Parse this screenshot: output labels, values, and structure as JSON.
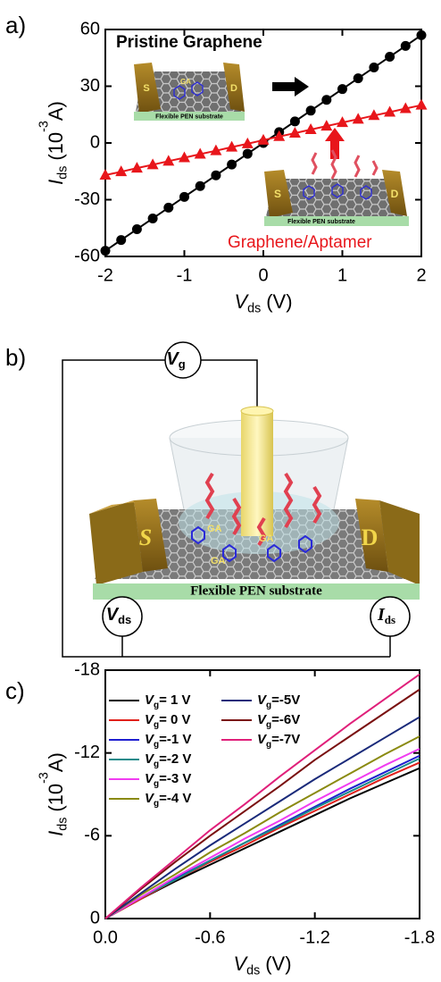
{
  "chart_data": [
    {
      "type": "line",
      "panel": "a)",
      "x": [
        -2,
        -1.8,
        -1.6,
        -1.4,
        -1.2,
        -1,
        -0.8,
        -0.6,
        -0.4,
        -0.2,
        0,
        0.2,
        0.4,
        0.6,
        0.8,
        1,
        1.2,
        1.4,
        1.6,
        1.8,
        2
      ],
      "series": [
        {
          "name": "Pristine Graphene",
          "color": "#000000",
          "marker": "circle",
          "values": [
            -57,
            -51.3,
            -45.6,
            -39.9,
            -34.2,
            -28.5,
            -22.8,
            -17.1,
            -11.4,
            -5.7,
            0,
            5.7,
            11.4,
            17.1,
            22.8,
            28.5,
            34.2,
            39.9,
            45.6,
            51.3,
            57
          ]
        },
        {
          "name": "Graphene/Aptamer",
          "color": "#e8161b",
          "marker": "triangle",
          "values": [
            -17,
            -15.2,
            -13.3,
            -11.5,
            -9.6,
            -7.8,
            -5.9,
            -4.1,
            -2.2,
            -0.4,
            1.5,
            3.4,
            5.2,
            7.1,
            8.9,
            10.8,
            12.6,
            14.5,
            16.3,
            18.2,
            20
          ]
        }
      ],
      "xlabel": [
        "V",
        "ds",
        "(V)"
      ],
      "ylabel": [
        "I",
        "ds",
        "(10",
        "-3",
        "A)"
      ],
      "xlim": [
        -2,
        2
      ],
      "xticks": [
        -2,
        -1,
        0,
        1,
        2
      ],
      "ylim": [
        -60,
        60
      ],
      "yticks": [
        -60,
        -30,
        0,
        30,
        60
      ],
      "inset_labels": {
        "source": "S",
        "drain": "D",
        "substrate": "Flexible PEN substrate",
        "molecule": "GA"
      }
    },
    {
      "type": "line",
      "panel": "c)",
      "x": [
        0,
        -0.2,
        -0.4,
        -0.6,
        -0.8,
        -1.0,
        -1.2,
        -1.4,
        -1.6,
        -1.8
      ],
      "series": [
        {
          "name": "Vg= 1 V",
          "color": "#000000",
          "values": [
            0,
            -1.4,
            -2.7,
            -3.9,
            -5.1,
            -6.3,
            -7.5,
            -8.7,
            -9.8,
            -10.9
          ]
        },
        {
          "name": "Vg= 0 V",
          "color": "#e0201b",
          "values": [
            0,
            -1.4,
            -2.8,
            -4.1,
            -5.3,
            -6.6,
            -7.8,
            -9.0,
            -10.2,
            -11.3
          ]
        },
        {
          "name": "Vg=-1 V",
          "color": "#1f1fd0",
          "values": [
            0,
            -1.5,
            -2.9,
            -4.2,
            -5.5,
            -6.8,
            -8.1,
            -9.4,
            -10.6,
            -11.8
          ]
        },
        {
          "name": "Vg=-2 V",
          "color": "#1a8a8a",
          "values": [
            0,
            -1.5,
            -2.8,
            -4.2,
            -5.5,
            -6.7,
            -8.0,
            -9.2,
            -10.4,
            -11.6
          ]
        },
        {
          "name": "Vg=-3 V",
          "color": "#f03cf0",
          "values": [
            0,
            -1.5,
            -3.0,
            -4.4,
            -5.8,
            -7.1,
            -8.5,
            -9.8,
            -11.1,
            -12.3
          ]
        },
        {
          "name": "Vg=-4 V",
          "color": "#8a8a10",
          "values": [
            0,
            -1.7,
            -3.2,
            -4.8,
            -6.2,
            -7.7,
            -9.1,
            -10.5,
            -11.9,
            -13.2
          ]
        },
        {
          "name": "Vg=-5V",
          "color": "#1a2a7a",
          "values": [
            0,
            -1.8,
            -3.6,
            -5.3,
            -6.9,
            -8.5,
            -10.1,
            -11.6,
            -13.1,
            -14.6
          ]
        },
        {
          "name": "Vg=-6V",
          "color": "#7a1010",
          "values": [
            0,
            -2.1,
            -4.1,
            -6.0,
            -7.8,
            -9.6,
            -11.5,
            -13.2,
            -14.9,
            -16.6
          ]
        },
        {
          "name": "Vg=-7V",
          "color": "#e0207a",
          "values": [
            0,
            -2.2,
            -4.3,
            -6.4,
            -8.3,
            -10.3,
            -12.2,
            -14.1,
            -15.9,
            -17.7
          ]
        }
      ],
      "legend": "top-left",
      "xlabel": [
        "V",
        "ds",
        "(V)"
      ],
      "ylabel": [
        "I",
        "ds",
        "(10",
        "-3",
        "A)"
      ],
      "xlim": [
        0,
        -1.8
      ],
      "xticks": [
        {
          "value": 0,
          "label": "0.0"
        },
        -0.6,
        -1.2,
        -1.8
      ],
      "ylim": [
        0,
        -18
      ],
      "yticks": [
        0,
        -6,
        -12,
        -18
      ]
    }
  ],
  "diagram": {
    "panel": "b)",
    "gate": [
      "V",
      "g"
    ],
    "source_meter": [
      "V",
      "ds"
    ],
    "drain_meter": [
      "I",
      "ds"
    ],
    "source": "S",
    "drain": "D",
    "substrate": "Flexible PEN substrate",
    "molecule": "GA"
  }
}
